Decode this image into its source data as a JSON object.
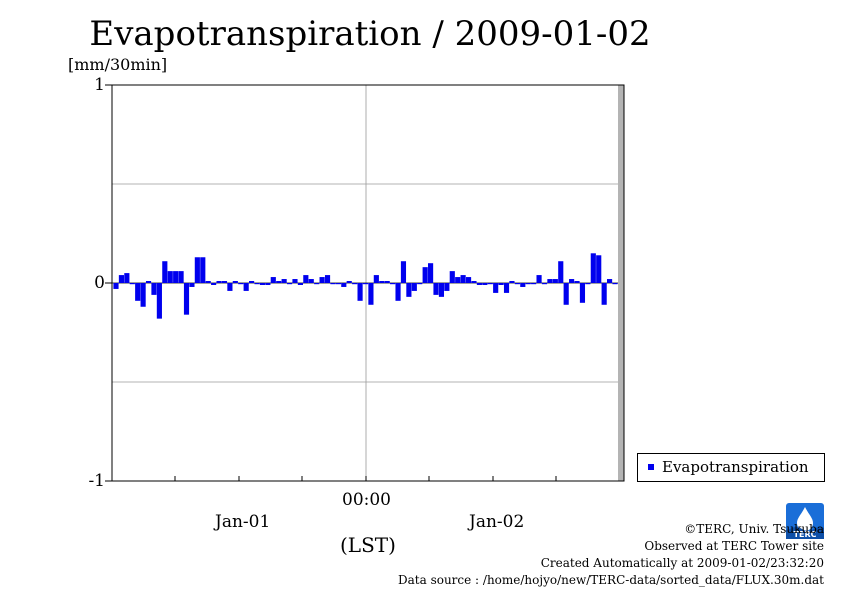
{
  "chart_data": {
    "type": "bar",
    "title": "Evapotranspiration / 2009-01-02",
    "ylabel": "[mm/30min]",
    "xlabel": "(LST)",
    "ylim": [
      -1,
      1
    ],
    "yticks": [
      "1",
      "0",
      "-1"
    ],
    "xtick_center": "00:00",
    "date_labels": [
      "Jan-01",
      "Jan-02"
    ],
    "grid": true,
    "legend_position": "bottom-right",
    "series": [
      {
        "name": "Evapotranspiration",
        "color": "#0000ee",
        "interval": "30min",
        "values": [
          -0.03,
          0.04,
          0.05,
          0.0,
          -0.09,
          -0.12,
          0.01,
          -0.06,
          -0.18,
          0.11,
          0.06,
          0.06,
          0.06,
          -0.16,
          -0.02,
          0.13,
          0.13,
          0.01,
          -0.01,
          0.01,
          0.01,
          -0.04,
          0.01,
          0.0,
          -0.04,
          0.01,
          0.0,
          -0.01,
          -0.01,
          0.03,
          0.01,
          0.02,
          0.0,
          0.02,
          -0.01,
          0.04,
          0.02,
          0.0,
          0.03,
          0.04,
          0.0,
          0.0,
          -0.02,
          0.01,
          0.0,
          -0.09,
          0.0,
          -0.11,
          0.04,
          0.01,
          0.01,
          0.0,
          -0.09,
          0.11,
          -0.07,
          -0.04,
          0.0,
          0.08,
          0.1,
          -0.06,
          -0.07,
          -0.04,
          0.06,
          0.03,
          0.04,
          0.03,
          0.01,
          -0.01,
          -0.01,
          0.0,
          -0.05,
          -0.01,
          -0.05,
          0.01,
          0.0,
          -0.02,
          0.0,
          0.0,
          0.04,
          0.0,
          0.02,
          0.02,
          0.11,
          -0.11,
          0.02,
          0.01,
          -0.1,
          0.0,
          0.15,
          0.14,
          -0.11,
          0.02,
          0.0
        ]
      }
    ]
  },
  "credits": {
    "copyright": "©TERC, Univ. Tsukuba",
    "site": "Observed at TERC Tower site",
    "created": "Created Automatically at 2009-01-02/23:32:20",
    "source": "Data source : /home/hojyo/new/TERC-data/sorted_data/FLUX.30m.dat"
  },
  "logo": {
    "text": "TERC",
    "color": "#1a6ed8"
  }
}
